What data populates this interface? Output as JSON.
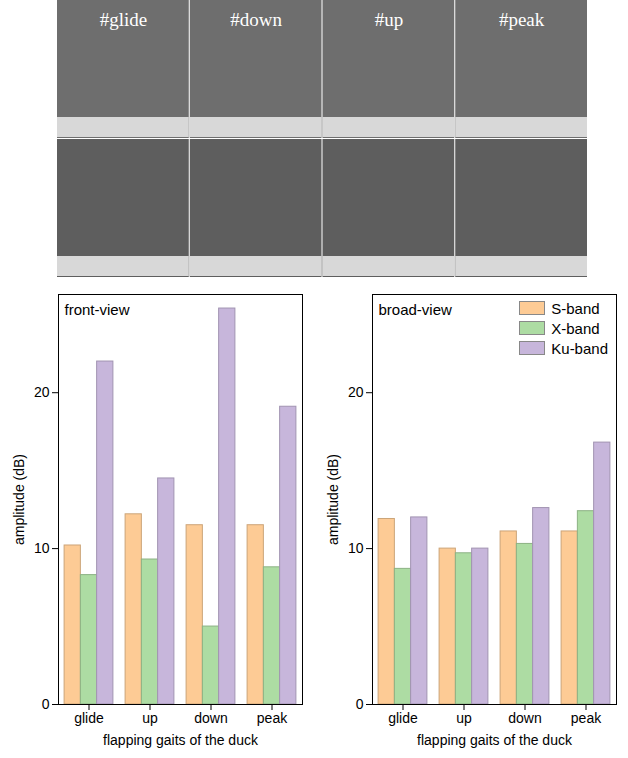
{
  "photo_labels": [
    "#glide",
    "#down",
    "#up",
    "#peak"
  ],
  "chart_data": [
    {
      "type": "bar",
      "title": "front-view",
      "x_label": "flapping gaits of the duck",
      "y_label": "amplitude (dB)",
      "categories": [
        "glide",
        "up",
        "down",
        "peak"
      ],
      "series": [
        {
          "name": "S-band",
          "color": "#fdcb95",
          "values": [
            10.2,
            12.2,
            11.5,
            11.5
          ]
        },
        {
          "name": "X-band",
          "color": "#addca3",
          "values": [
            8.3,
            9.3,
            5.0,
            8.8
          ]
        },
        {
          "name": "Ku-band",
          "color": "#c7b6db",
          "values": [
            22.0,
            14.5,
            25.4,
            19.1
          ]
        }
      ],
      "ylim": [
        0,
        26.3
      ],
      "yticks": [
        0,
        10,
        20
      ],
      "grid": false
    },
    {
      "type": "bar",
      "title": "broad-view",
      "x_label": "flapping gaits of the duck",
      "y_label": "amplitude (dB)",
      "categories": [
        "glide",
        "up",
        "down",
        "peak"
      ],
      "series": [
        {
          "name": "S-band",
          "color": "#fdcb95",
          "values": [
            11.9,
            10.0,
            11.1,
            11.1
          ]
        },
        {
          "name": "X-band",
          "color": "#addca3",
          "values": [
            8.7,
            9.7,
            10.3,
            12.4
          ]
        },
        {
          "name": "Ku-band",
          "color": "#c7b6db",
          "values": [
            12.0,
            10.0,
            12.6,
            16.8
          ]
        }
      ],
      "ylim": [
        0,
        26.3
      ],
      "yticks": [
        0,
        10,
        20
      ],
      "grid": false,
      "legend": "top-right"
    }
  ]
}
